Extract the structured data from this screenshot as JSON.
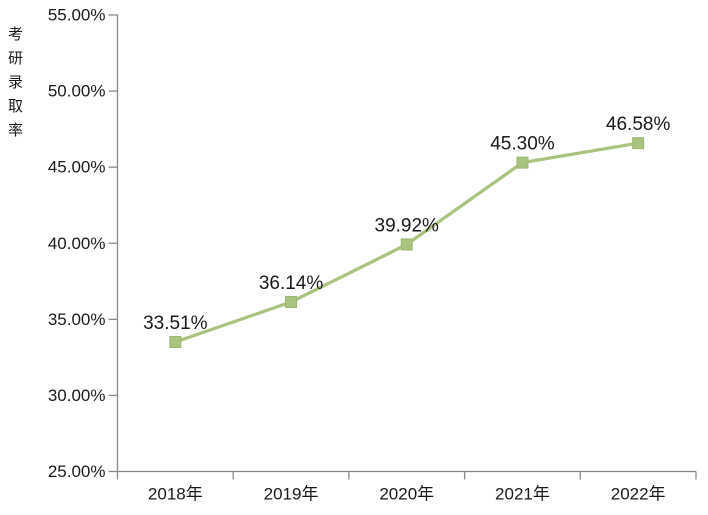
{
  "chart_data": {
    "type": "line",
    "y_axis_title": "考研录取率",
    "categories": [
      "2018年",
      "2019年",
      "2020年",
      "2021年",
      "2022年"
    ],
    "series": [
      {
        "name": "考研录取率",
        "values": [
          33.51,
          36.14,
          39.92,
          45.3,
          46.58
        ]
      }
    ],
    "data_labels": [
      "33.51%",
      "36.14%",
      "39.92%",
      "45.30%",
      "46.58%"
    ],
    "y_ticks": [
      "55.00%",
      "50.00%",
      "45.00%",
      "40.00%",
      "35.00%",
      "30.00%",
      "25.00%"
    ],
    "ylim": [
      25,
      55
    ],
    "y_step": 5,
    "grid": false,
    "legend": "none",
    "marker_shape": "square",
    "colors": {
      "line": "#a9c47e",
      "marker": "#a9c47e",
      "marker_border": "#9cb870",
      "axis": "#8a8a8a",
      "text": "#1a1a1a"
    }
  }
}
